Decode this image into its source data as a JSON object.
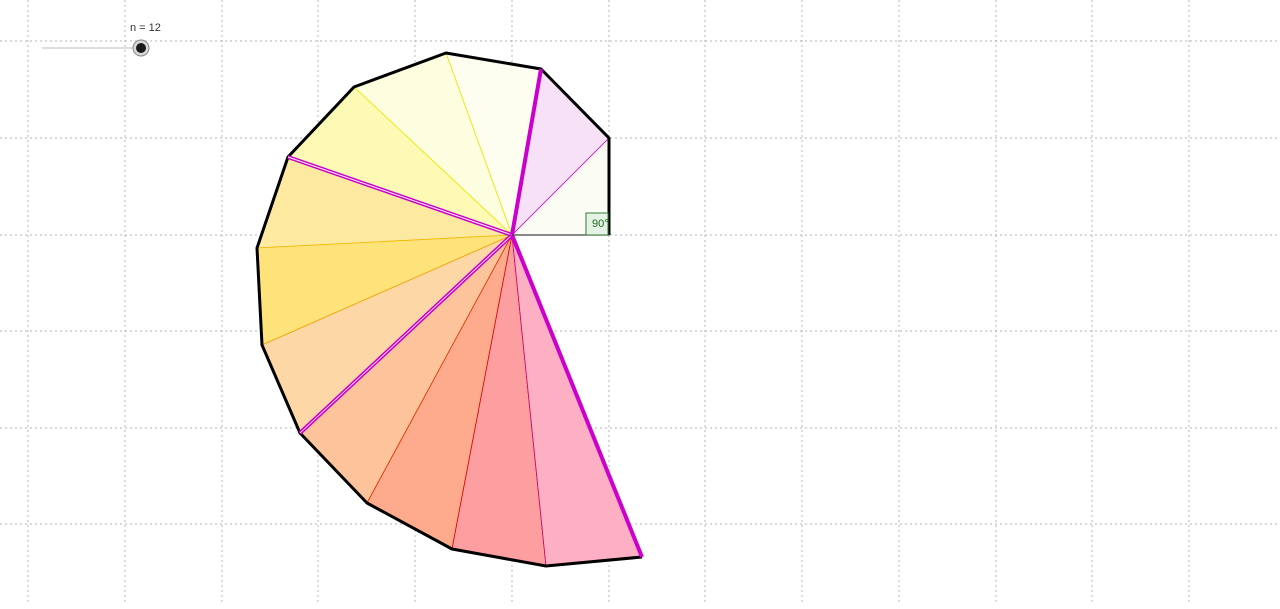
{
  "slider": {
    "name": "n",
    "value": 12,
    "label": "n = 12"
  },
  "diagram": {
    "angle_label": "90°",
    "colors": {
      "grid": "#9a9a9a",
      "outline": "#000000",
      "highlight_edge": "#cc00cc",
      "angle_box_fill": "#e6f2e6",
      "angle_box_stroke": "#2e7d32"
    }
  }
}
